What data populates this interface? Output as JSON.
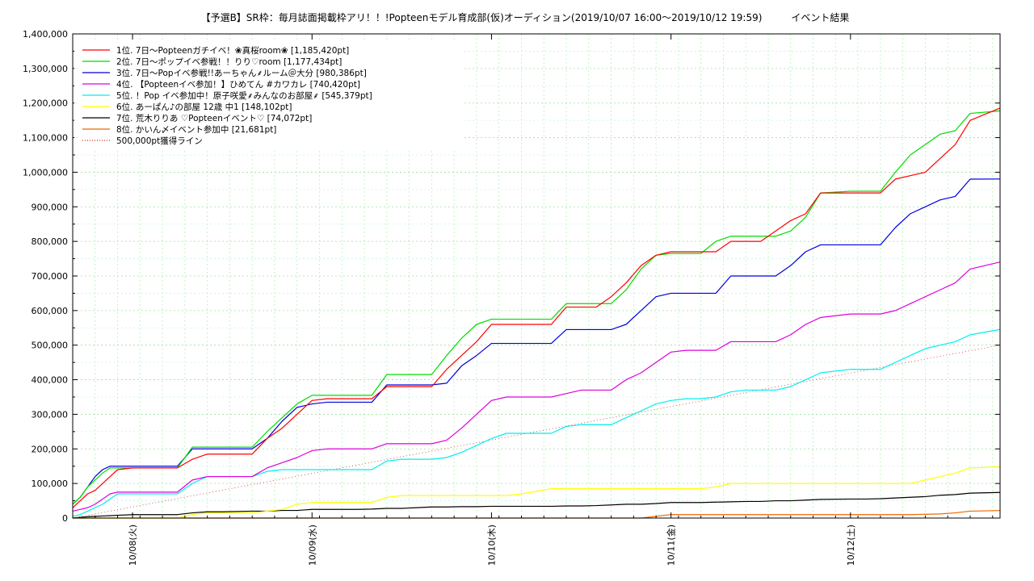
{
  "chart_data": {
    "type": "line",
    "title": "【予選B】SR枠：毎月誌面掲載枠アリ！！!Popteenモデル育成部(仮)オーディション(2019/10/07 16:00〜2019/10/12 19:59)　　　イベント結果",
    "ylim": [
      0,
      1400000
    ],
    "y_ticks": [
      "0",
      "100,000",
      "200,000",
      "300,000",
      "400,000",
      "500,000",
      "600,000",
      "700,000",
      "800,000",
      "900,000",
      "1,000,000",
      "1,100,000",
      "1,200,000",
      "1,300,000",
      "1,400,000"
    ],
    "y_tick_values": [
      0,
      100000,
      200000,
      300000,
      400000,
      500000,
      600000,
      700000,
      800000,
      900000,
      1000000,
      1100000,
      1200000,
      1300000,
      1400000
    ],
    "xlim": [
      0,
      124
    ],
    "x_tick_hours": [
      8,
      32,
      56,
      80,
      104
    ],
    "x_tick_labels": [
      "10/08(火)",
      "10/09(水)",
      "10/10(木)",
      "10/11(金)",
      "10/12(土)"
    ],
    "grid": true,
    "legend_position": "top-left",
    "reference_line": {
      "name": "500,000pt獲得ライン",
      "value": 500000,
      "color": "#cc3333"
    },
    "series": [
      {
        "name": "1位. 7日〜Popteenガチイベ！❀真桜room❀ [1,185,420pt]",
        "color": "#ff0000",
        "x": [
          0,
          1,
          2,
          3,
          4,
          5,
          6,
          8,
          10,
          14,
          16,
          18,
          20,
          24,
          26,
          28,
          30,
          32,
          34,
          36,
          38,
          40,
          42,
          44,
          46,
          48,
          50,
          52,
          54,
          56,
          58,
          60,
          64,
          66,
          68,
          70,
          72,
          74,
          76,
          78,
          80,
          82,
          84,
          86,
          88,
          90,
          92,
          94,
          96,
          98,
          100,
          104,
          106,
          108,
          110,
          112,
          114,
          116,
          118,
          120,
          124
        ],
        "y": [
          30000,
          50000,
          70000,
          80000,
          100000,
          120000,
          140000,
          145000,
          145000,
          145000,
          170000,
          185000,
          185000,
          185000,
          230000,
          260000,
          300000,
          340000,
          345000,
          345000,
          345000,
          345000,
          380000,
          380000,
          380000,
          380000,
          430000,
          470000,
          510000,
          560000,
          560000,
          560000,
          560000,
          610000,
          610000,
          610000,
          640000,
          680000,
          730000,
          760000,
          770000,
          770000,
          770000,
          770000,
          800000,
          800000,
          800000,
          830000,
          860000,
          880000,
          940000,
          940000,
          940000,
          940000,
          980000,
          990000,
          1000000,
          1040000,
          1080000,
          1150000,
          1185420
        ]
      },
      {
        "name": "2位. 7日〜ポップイベ参戦！！りり♡room [1,177,434pt]",
        "color": "#00dd00",
        "x": [
          0,
          1,
          2,
          3,
          4,
          5,
          6,
          8,
          10,
          14,
          16,
          18,
          20,
          24,
          26,
          28,
          30,
          32,
          34,
          36,
          38,
          40,
          42,
          44,
          46,
          48,
          50,
          52,
          54,
          56,
          58,
          60,
          64,
          66,
          68,
          70,
          72,
          74,
          76,
          78,
          80,
          82,
          84,
          86,
          88,
          90,
          92,
          94,
          96,
          98,
          100,
          104,
          106,
          108,
          110,
          112,
          114,
          116,
          118,
          120,
          124
        ],
        "y": [
          40000,
          60000,
          90000,
          110000,
          130000,
          145000,
          145000,
          145000,
          145000,
          145000,
          205000,
          205000,
          205000,
          205000,
          250000,
          290000,
          330000,
          355000,
          355000,
          355000,
          355000,
          355000,
          415000,
          415000,
          415000,
          415000,
          470000,
          520000,
          560000,
          575000,
          575000,
          575000,
          575000,
          620000,
          620000,
          620000,
          620000,
          660000,
          720000,
          760000,
          765000,
          765000,
          765000,
          800000,
          815000,
          815000,
          815000,
          815000,
          830000,
          870000,
          940000,
          945000,
          945000,
          945000,
          1000000,
          1050000,
          1080000,
          1110000,
          1120000,
          1170000,
          1177434
        ]
      },
      {
        "name": "3位. 7日〜Popイベ参戦!!あーちゃん⸙ルーム＠大分 [980,386pt]",
        "color": "#0000dd",
        "x": [
          0,
          1,
          2,
          3,
          4,
          5,
          6,
          8,
          10,
          14,
          16,
          18,
          20,
          24,
          26,
          28,
          30,
          32,
          34,
          36,
          38,
          40,
          42,
          44,
          46,
          48,
          50,
          52,
          54,
          56,
          58,
          60,
          64,
          66,
          68,
          70,
          72,
          74,
          76,
          78,
          80,
          82,
          84,
          86,
          88,
          90,
          92,
          94,
          96,
          98,
          100,
          104,
          106,
          108,
          110,
          112,
          114,
          116,
          118,
          120,
          124
        ],
        "y": [
          40000,
          60000,
          90000,
          120000,
          140000,
          150000,
          150000,
          150000,
          150000,
          150000,
          200000,
          200000,
          200000,
          200000,
          230000,
          280000,
          320000,
          330000,
          335000,
          335000,
          335000,
          335000,
          385000,
          385000,
          385000,
          385000,
          390000,
          440000,
          470000,
          505000,
          505000,
          505000,
          505000,
          545000,
          545000,
          545000,
          545000,
          560000,
          600000,
          640000,
          650000,
          650000,
          650000,
          650000,
          700000,
          700000,
          700000,
          700000,
          730000,
          770000,
          790000,
          790000,
          790000,
          790000,
          840000,
          880000,
          900000,
          920000,
          930000,
          980000,
          980386
        ]
      },
      {
        "name": "4位. 【Popteenイベ参加！】ひめてん #カワカレ [740,420pt]",
        "color": "#dd00dd",
        "x": [
          0,
          1,
          2,
          3,
          4,
          5,
          6,
          8,
          10,
          14,
          16,
          18,
          20,
          24,
          26,
          28,
          30,
          32,
          34,
          36,
          38,
          40,
          42,
          44,
          46,
          48,
          50,
          52,
          54,
          56,
          58,
          60,
          64,
          66,
          68,
          70,
          72,
          74,
          76,
          78,
          80,
          82,
          84,
          86,
          88,
          90,
          92,
          94,
          96,
          98,
          100,
          104,
          106,
          108,
          110,
          112,
          114,
          116,
          118,
          120,
          124
        ],
        "y": [
          20000,
          25000,
          30000,
          40000,
          55000,
          70000,
          75000,
          75000,
          75000,
          75000,
          110000,
          120000,
          120000,
          120000,
          145000,
          160000,
          175000,
          195000,
          200000,
          200000,
          200000,
          200000,
          215000,
          215000,
          215000,
          215000,
          225000,
          260000,
          300000,
          340000,
          350000,
          350000,
          350000,
          360000,
          370000,
          370000,
          370000,
          400000,
          420000,
          450000,
          480000,
          485000,
          485000,
          485000,
          510000,
          510000,
          510000,
          510000,
          530000,
          560000,
          580000,
          590000,
          590000,
          590000,
          600000,
          620000,
          640000,
          660000,
          680000,
          720000,
          740420
        ]
      },
      {
        "name": "5位. ！Pop イベ参加中！原子咲愛⸙みんなのお部屋⸙ [545,379pt]",
        "color": "#00eeee",
        "x": [
          0,
          1,
          2,
          3,
          4,
          5,
          6,
          8,
          10,
          14,
          16,
          18,
          20,
          24,
          26,
          28,
          30,
          32,
          34,
          36,
          38,
          40,
          42,
          44,
          46,
          48,
          50,
          52,
          54,
          56,
          58,
          60,
          64,
          66,
          68,
          70,
          72,
          74,
          76,
          78,
          80,
          82,
          84,
          86,
          88,
          90,
          92,
          94,
          96,
          98,
          100,
          104,
          106,
          108,
          110,
          112,
          114,
          116,
          118,
          120,
          124
        ],
        "y": [
          5000,
          10000,
          20000,
          30000,
          40000,
          55000,
          70000,
          70000,
          70000,
          70000,
          100000,
          120000,
          120000,
          120000,
          135000,
          140000,
          140000,
          140000,
          140000,
          140000,
          140000,
          140000,
          165000,
          170000,
          170000,
          170000,
          175000,
          190000,
          210000,
          230000,
          245000,
          245000,
          245000,
          265000,
          270000,
          270000,
          270000,
          290000,
          310000,
          330000,
          340000,
          345000,
          345000,
          350000,
          365000,
          370000,
          370000,
          370000,
          380000,
          400000,
          420000,
          430000,
          430000,
          430000,
          450000,
          470000,
          490000,
          500000,
          510000,
          530000,
          545379
        ]
      },
      {
        "name": "6位. あーぱん♪の部屋 12歳 中1 [148,102pt]",
        "color": "#ffff00",
        "x": [
          0,
          1,
          2,
          3,
          4,
          5,
          6,
          8,
          10,
          14,
          16,
          18,
          20,
          24,
          26,
          28,
          30,
          32,
          34,
          36,
          38,
          40,
          42,
          44,
          46,
          48,
          50,
          52,
          54,
          56,
          58,
          60,
          64,
          66,
          68,
          70,
          72,
          74,
          76,
          78,
          80,
          82,
          84,
          86,
          88,
          90,
          92,
          94,
          96,
          98,
          100,
          104,
          106,
          108,
          110,
          112,
          114,
          116,
          118,
          120,
          124
        ],
        "y": [
          0,
          0,
          0,
          0,
          0,
          0,
          0,
          0,
          0,
          0,
          10000,
          15000,
          15000,
          15000,
          20000,
          25000,
          40000,
          45000,
          45000,
          45000,
          45000,
          45000,
          60000,
          65000,
          65000,
          65000,
          65000,
          65000,
          65000,
          65000,
          65000,
          70000,
          85000,
          85000,
          85000,
          85000,
          85000,
          85000,
          85000,
          85000,
          85000,
          85000,
          85000,
          90000,
          100000,
          100000,
          100000,
          100000,
          100000,
          100000,
          100000,
          100000,
          100000,
          100000,
          100000,
          100000,
          110000,
          120000,
          130000,
          145000,
          148102
        ]
      },
      {
        "name": "7位. 荒木りりあ ♡Popteenイベント♡ [74,072pt]",
        "color": "#000000",
        "x": [
          0,
          1,
          2,
          3,
          4,
          5,
          6,
          8,
          10,
          14,
          16,
          18,
          20,
          24,
          26,
          28,
          30,
          32,
          34,
          36,
          38,
          40,
          42,
          44,
          46,
          48,
          50,
          52,
          54,
          56,
          58,
          60,
          64,
          66,
          68,
          70,
          72,
          74,
          76,
          78,
          80,
          82,
          84,
          86,
          88,
          90,
          92,
          94,
          96,
          98,
          100,
          104,
          106,
          108,
          110,
          112,
          114,
          116,
          118,
          120,
          124
        ],
        "y": [
          0,
          2000,
          4000,
          5000,
          6000,
          7000,
          8000,
          10000,
          10000,
          10000,
          15000,
          18000,
          18000,
          20000,
          20000,
          22000,
          22000,
          25000,
          25000,
          25000,
          25000,
          26000,
          28000,
          28000,
          30000,
          32000,
          32000,
          33000,
          33000,
          34000,
          34000,
          34000,
          34000,
          35000,
          35000,
          36000,
          38000,
          40000,
          40000,
          42000,
          45000,
          45000,
          45000,
          46000,
          47000,
          48000,
          48000,
          50000,
          50000,
          52000,
          54000,
          55000,
          55000,
          56000,
          58000,
          60000,
          62000,
          66000,
          68000,
          72000,
          74072
        ]
      },
      {
        "name": "8位. かいん〆イベント参加中 [21,681pt]",
        "color": "#ee6600",
        "x": [
          0,
          10,
          20,
          30,
          40,
          50,
          60,
          70,
          76,
          80,
          84,
          88,
          92,
          96,
          100,
          104,
          108,
          112,
          116,
          118,
          120,
          124
        ],
        "y": [
          0,
          0,
          0,
          0,
          0,
          0,
          0,
          0,
          0,
          10000,
          10000,
          10000,
          10000,
          10000,
          10000,
          10000,
          10000,
          10000,
          12000,
          15000,
          20000,
          21681
        ]
      }
    ]
  }
}
